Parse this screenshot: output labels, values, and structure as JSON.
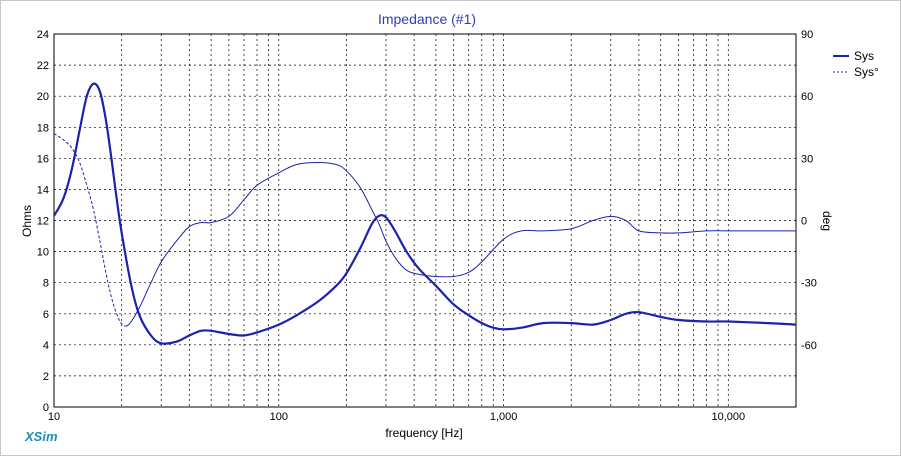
{
  "chart_data": {
    "type": "line",
    "title": "Impedance (#1)",
    "xlabel": "frequency [Hz]",
    "ylabel": "Ohms",
    "y2label": "deg",
    "xscale": "log",
    "xlim": [
      10,
      20000
    ],
    "ylim": [
      0,
      24
    ],
    "y2lim": [
      -90,
      90
    ],
    "x_tick_labels": [
      "10",
      "100",
      "1,000",
      "10,000"
    ],
    "y_tick_labels": [
      "0",
      "2",
      "4",
      "6",
      "8",
      "10",
      "12",
      "14",
      "16",
      "18",
      "20",
      "22",
      "24"
    ],
    "y2_tick_labels": [
      "90",
      "60",
      "30",
      "0",
      "-30",
      "-60"
    ],
    "grid": true,
    "legend_position": "top-right",
    "series": [
      {
        "name": "Sys",
        "axis": "left",
        "color": "#1c23a8",
        "style": "solid-thick",
        "points": [
          [
            10,
            12.3
          ],
          [
            11,
            13.4
          ],
          [
            12,
            15.3
          ],
          [
            13,
            17.8
          ],
          [
            14,
            20.0
          ],
          [
            15,
            20.8
          ],
          [
            16,
            20.3
          ],
          [
            17,
            18.5
          ],
          [
            18,
            16.0
          ],
          [
            19,
            13.4
          ],
          [
            20,
            11.2
          ],
          [
            22,
            7.9
          ],
          [
            24,
            5.9
          ],
          [
            27,
            4.6
          ],
          [
            30,
            4.1
          ],
          [
            35,
            4.2
          ],
          [
            40,
            4.6
          ],
          [
            45,
            4.9
          ],
          [
            50,
            4.9
          ],
          [
            60,
            4.7
          ],
          [
            70,
            4.6
          ],
          [
            80,
            4.8
          ],
          [
            100,
            5.3
          ],
          [
            120,
            5.9
          ],
          [
            150,
            6.8
          ],
          [
            180,
            7.8
          ],
          [
            200,
            8.6
          ],
          [
            230,
            10.2
          ],
          [
            260,
            11.8
          ],
          [
            280,
            12.3
          ],
          [
            300,
            12.2
          ],
          [
            330,
            11.3
          ],
          [
            370,
            10.0
          ],
          [
            420,
            8.9
          ],
          [
            500,
            7.8
          ],
          [
            600,
            6.6
          ],
          [
            700,
            5.9
          ],
          [
            800,
            5.4
          ],
          [
            900,
            5.1
          ],
          [
            1000,
            5.0
          ],
          [
            1200,
            5.1
          ],
          [
            1500,
            5.4
          ],
          [
            2000,
            5.4
          ],
          [
            2500,
            5.3
          ],
          [
            3000,
            5.6
          ],
          [
            3500,
            6.0
          ],
          [
            4000,
            6.1
          ],
          [
            5000,
            5.8
          ],
          [
            6000,
            5.6
          ],
          [
            8000,
            5.5
          ],
          [
            10000,
            5.5
          ],
          [
            15000,
            5.4
          ],
          [
            20000,
            5.3
          ]
        ]
      },
      {
        "name": "Sys°",
        "axis": "right",
        "color": "#1c23a8",
        "style": "dashed-thin-then-solid",
        "points": [
          [
            10,
            42
          ],
          [
            11,
            39
          ],
          [
            12,
            35
          ],
          [
            13,
            28
          ],
          [
            14,
            17
          ],
          [
            15,
            5
          ],
          [
            16,
            -10
          ],
          [
            17,
            -25
          ],
          [
            18,
            -37
          ],
          [
            19,
            -45
          ],
          [
            20,
            -50
          ],
          [
            21,
            -51
          ],
          [
            22,
            -49
          ],
          [
            24,
            -42
          ],
          [
            27,
            -30
          ],
          [
            30,
            -20
          ],
          [
            35,
            -10
          ],
          [
            40,
            -3
          ],
          [
            45,
            -1
          ],
          [
            50,
            -1
          ],
          [
            60,
            2
          ],
          [
            70,
            10
          ],
          [
            80,
            17
          ],
          [
            100,
            23
          ],
          [
            120,
            27
          ],
          [
            150,
            28
          ],
          [
            180,
            27
          ],
          [
            200,
            24
          ],
          [
            230,
            16
          ],
          [
            260,
            5
          ],
          [
            280,
            -2
          ],
          [
            300,
            -10
          ],
          [
            330,
            -18
          ],
          [
            370,
            -24
          ],
          [
            420,
            -26
          ],
          [
            500,
            -27
          ],
          [
            600,
            -27
          ],
          [
            700,
            -25
          ],
          [
            800,
            -20
          ],
          [
            1000,
            -9
          ],
          [
            1200,
            -5
          ],
          [
            1500,
            -5
          ],
          [
            2000,
            -4
          ],
          [
            2500,
            0
          ],
          [
            3000,
            2
          ],
          [
            3500,
            0
          ],
          [
            4000,
            -5
          ],
          [
            5000,
            -6
          ],
          [
            6000,
            -6
          ],
          [
            8000,
            -5
          ],
          [
            10000,
            -5
          ],
          [
            15000,
            -5
          ],
          [
            20000,
            -5
          ]
        ]
      }
    ]
  },
  "brand": "XSim",
  "colors": {
    "series": "#1c23a8",
    "title": "#2b3fb4",
    "grid": "#000000",
    "background": "#ffffff"
  }
}
